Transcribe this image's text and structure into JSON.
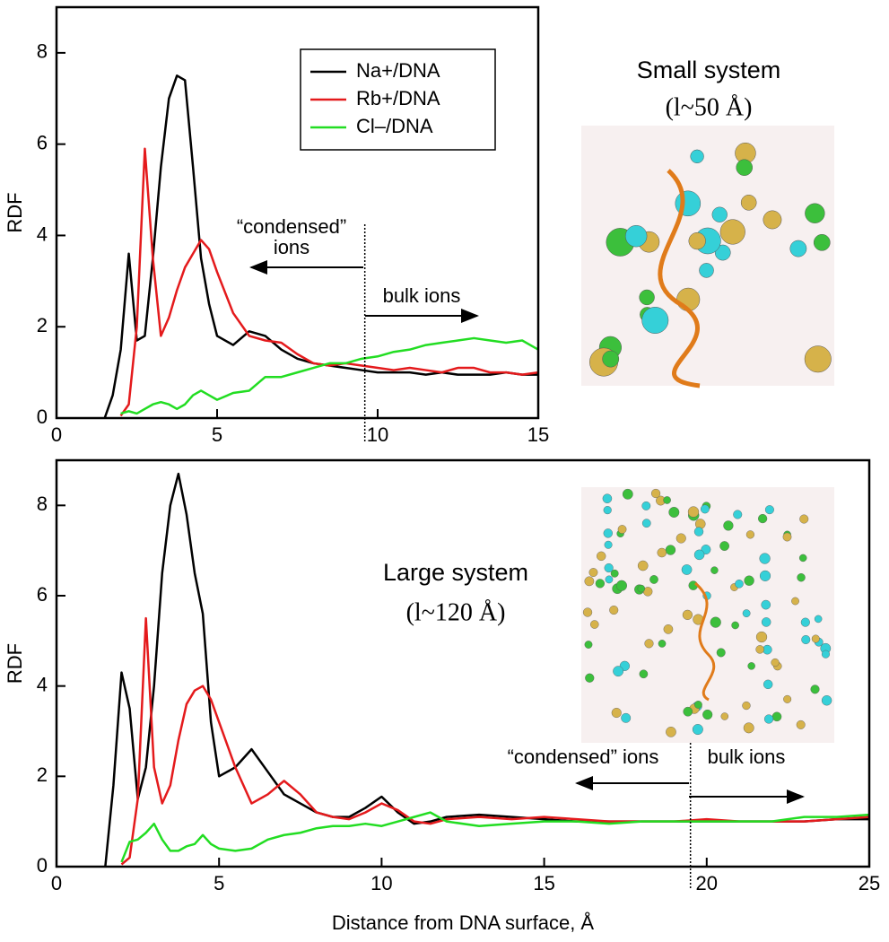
{
  "chart_data": [
    {
      "type": "line",
      "y_label": "RDF",
      "xlim": [
        0,
        15
      ],
      "ylim": [
        0,
        9
      ],
      "xticks": [
        0,
        5,
        10,
        15
      ],
      "yticks": [
        0,
        2,
        4,
        6,
        8
      ],
      "legend": "upper right",
      "x": [
        1.5,
        1.75,
        2,
        2.25,
        2.5,
        2.75,
        3,
        3.25,
        3.5,
        3.75,
        4,
        4.25,
        4.5,
        4.75,
        5,
        5.5,
        6,
        6.5,
        7,
        7.5,
        8,
        8.5,
        9,
        9.5,
        10,
        10.5,
        11,
        11.5,
        12,
        12.5,
        13,
        13.5,
        14,
        14.5,
        15
      ],
      "series": [
        {
          "name": "Na+/DNA",
          "color": "#000000",
          "values": [
            0,
            0.5,
            1.5,
            3.6,
            1.7,
            1.8,
            3.5,
            5.5,
            7.0,
            7.5,
            7.4,
            5.5,
            3.5,
            2.5,
            1.8,
            1.6,
            1.9,
            1.8,
            1.5,
            1.3,
            1.2,
            1.15,
            1.1,
            1.05,
            1.0,
            1.0,
            1.0,
            0.95,
            1.0,
            0.95,
            0.95,
            0.95,
            1.0,
            0.95,
            0.95
          ]
        },
        {
          "name": "Rb+/DNA",
          "color": "#e41a1c",
          "values": [
            null,
            null,
            0.05,
            0.3,
            2.0,
            5.9,
            3.5,
            1.8,
            2.2,
            2.8,
            3.3,
            3.6,
            3.9,
            3.7,
            3.2,
            2.3,
            1.8,
            1.7,
            1.65,
            1.4,
            1.2,
            1.15,
            1.2,
            1.15,
            1.1,
            1.05,
            1.1,
            1.05,
            1.0,
            1.1,
            1.1,
            1.0,
            1.0,
            0.95,
            1.0
          ]
        },
        {
          "name": "Cl–/DNA",
          "color": "#22dd22",
          "values": [
            null,
            null,
            0.1,
            0.15,
            0.1,
            0.2,
            0.3,
            0.35,
            0.3,
            0.2,
            0.3,
            0.5,
            0.6,
            0.5,
            0.4,
            0.55,
            0.6,
            0.9,
            0.9,
            1.0,
            1.1,
            1.2,
            1.2,
            1.3,
            1.35,
            1.45,
            1.5,
            1.6,
            1.65,
            1.7,
            1.75,
            1.7,
            1.65,
            1.7,
            1.5
          ]
        }
      ],
      "divider_x": 9.6,
      "annotations": [
        "“condensed”",
        "ions",
        "bulk ions",
        "Small system",
        "(l~50 Å)"
      ]
    },
    {
      "type": "line",
      "x_label": "Distance from DNA surface, Å",
      "y_label": "RDF",
      "xlim": [
        0,
        25
      ],
      "ylim": [
        0,
        9
      ],
      "xticks": [
        0,
        5,
        10,
        15,
        20,
        25
      ],
      "yticks": [
        0,
        2,
        4,
        6,
        8
      ],
      "x": [
        1.5,
        1.75,
        2,
        2.25,
        2.5,
        2.75,
        3,
        3.25,
        3.5,
        3.75,
        4,
        4.25,
        4.5,
        4.75,
        5,
        5.5,
        6,
        6.5,
        7,
        7.5,
        8,
        8.5,
        9,
        9.5,
        10,
        10.5,
        11,
        11.5,
        12,
        13,
        14,
        15,
        16,
        17,
        18,
        19,
        20,
        21,
        22,
        23,
        24,
        25
      ],
      "series": [
        {
          "color": "#000000",
          "values": [
            0,
            1.8,
            4.3,
            3.5,
            1.5,
            2.2,
            4.0,
            6.5,
            8.0,
            8.7,
            7.8,
            6.5,
            5.6,
            3.2,
            2.0,
            2.2,
            2.6,
            2.1,
            1.6,
            1.4,
            1.2,
            1.1,
            1.1,
            1.3,
            1.55,
            1.2,
            0.95,
            1.0,
            1.1,
            1.15,
            1.1,
            1.05,
            1.0,
            1.0,
            1.0,
            1.0,
            1.0,
            1.0,
            1.0,
            1.0,
            1.05,
            1.05
          ]
        },
        {
          "color": "#e41a1c",
          "values": [
            null,
            null,
            0.05,
            0.2,
            1.5,
            5.5,
            2.2,
            1.4,
            1.8,
            2.8,
            3.6,
            3.9,
            4.0,
            3.7,
            3.2,
            2.2,
            1.4,
            1.6,
            1.9,
            1.6,
            1.2,
            1.1,
            1.05,
            1.2,
            1.4,
            1.25,
            1.0,
            0.95,
            1.05,
            1.1,
            1.05,
            1.1,
            1.05,
            1.0,
            1.0,
            1.0,
            1.05,
            1.0,
            1.0,
            1.0,
            1.05,
            1.1
          ]
        },
        {
          "color": "#22dd22",
          "values": [
            null,
            null,
            0.1,
            0.55,
            0.6,
            0.75,
            0.95,
            0.6,
            0.35,
            0.35,
            0.45,
            0.5,
            0.7,
            0.5,
            0.4,
            0.35,
            0.4,
            0.6,
            0.7,
            0.75,
            0.85,
            0.9,
            0.9,
            0.95,
            0.9,
            1.0,
            1.1,
            1.2,
            1.0,
            0.9,
            0.95,
            1.0,
            1.0,
            0.95,
            1.0,
            1.0,
            1.0,
            1.0,
            1.0,
            1.1,
            1.1,
            1.15
          ]
        }
      ],
      "divider_x": 19.5,
      "annotations": [
        "“condensed” ions",
        "bulk ions",
        "Large system",
        "(l~120 Å)"
      ]
    }
  ]
}
